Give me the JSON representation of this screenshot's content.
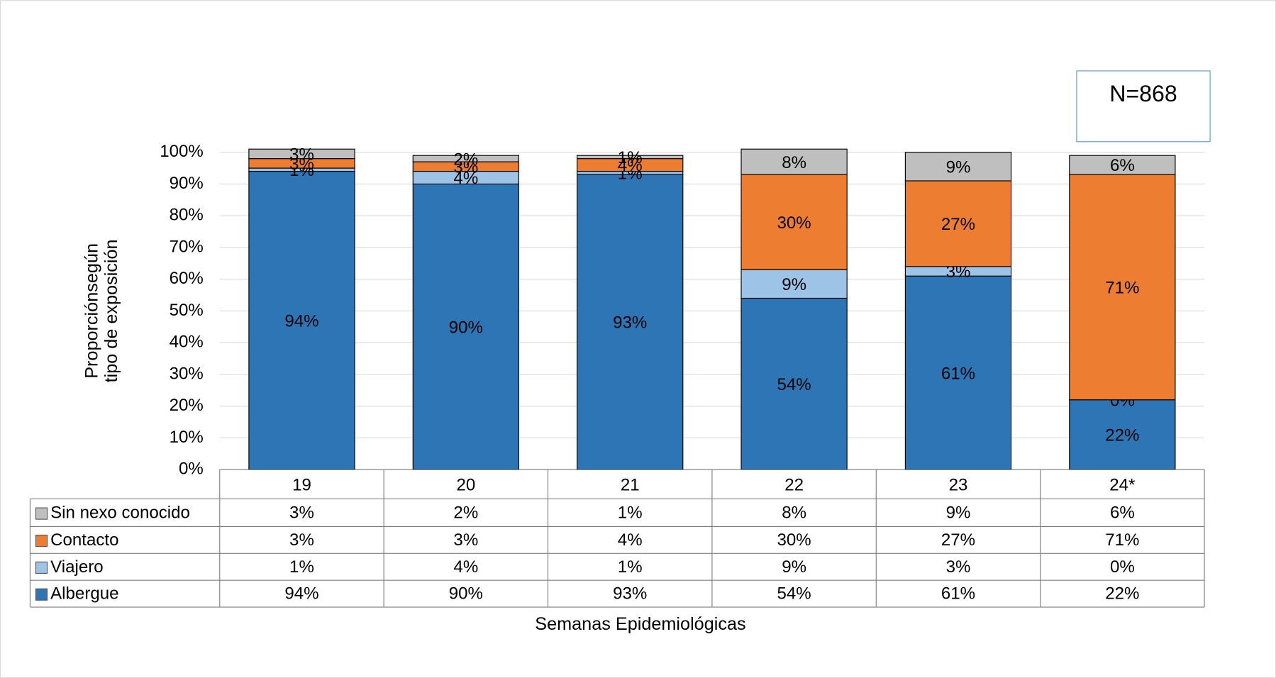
{
  "chart_data": {
    "type": "stacked_bar",
    "annotation": "N=868",
    "y_label": [
      "Proporciónsegún",
      "tipo de exposición"
    ],
    "x_label": "Semanas Epidemiológicas",
    "categories": [
      "19",
      "20",
      "21",
      "22",
      "23",
      "24*"
    ],
    "ylim": [
      0,
      100
    ],
    "yticks": [
      {
        "value": 0,
        "label": "0%"
      },
      {
        "value": 10,
        "label": "10%"
      },
      {
        "value": 20,
        "label": "20%"
      },
      {
        "value": 30,
        "label": "30%"
      },
      {
        "value": 40,
        "label": "40%"
      },
      {
        "value": 50,
        "label": "50%"
      },
      {
        "value": 60,
        "label": "60%"
      },
      {
        "value": 70,
        "label": "70%"
      },
      {
        "value": 80,
        "label": "80%"
      },
      {
        "value": 90,
        "label": "90%"
      },
      {
        "value": 100,
        "label": "100%"
      }
    ],
    "grid": true,
    "series": [
      {
        "name": "Albergue",
        "color": "#2e75b6",
        "values": [
          94,
          90,
          93,
          54,
          61,
          22
        ],
        "value_labels": [
          "94%",
          "90%",
          "93%",
          "54%",
          "61%",
          "22%"
        ]
      },
      {
        "name": "Viajero",
        "color": "#9dc3e6",
        "values": [
          1,
          4,
          1,
          9,
          3,
          0
        ],
        "value_labels": [
          "1%",
          "4%",
          "1%",
          "9%",
          "3%",
          "0%"
        ]
      },
      {
        "name": "Contacto",
        "color": "#ed7d31",
        "values": [
          3,
          3,
          4,
          30,
          27,
          71
        ],
        "value_labels": [
          "3%",
          "3%",
          "4%",
          "30%",
          "27%",
          "71%"
        ]
      },
      {
        "name": "Sin nexo conocido",
        "color": "#bfbfbf",
        "values": [
          3,
          2,
          1,
          8,
          9,
          6
        ],
        "value_labels": [
          "3%",
          "2%",
          "1%",
          "8%",
          "9%",
          "6%"
        ]
      }
    ]
  }
}
